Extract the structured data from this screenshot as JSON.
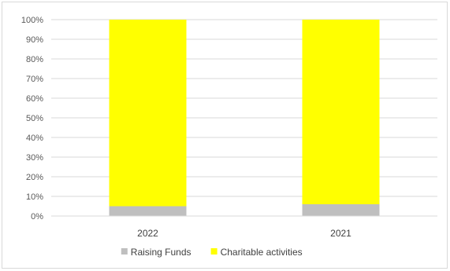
{
  "chart_data": {
    "type": "bar",
    "stacked": true,
    "normalized": true,
    "categories": [
      "2022",
      "2021"
    ],
    "series": [
      {
        "name": "Raising Funds",
        "values": [
          5,
          6
        ],
        "color": "#bfbfbf"
      },
      {
        "name": "Charitable activities",
        "values": [
          95,
          94
        ],
        "color": "#ffff00"
      }
    ],
    "ylim": [
      0,
      100
    ],
    "yticks": [
      "0%",
      "10%",
      "20%",
      "30%",
      "40%",
      "50%",
      "60%",
      "70%",
      "80%",
      "90%",
      "100%"
    ],
    "grid": true,
    "legend": "bottom",
    "title": "",
    "xlabel": "",
    "ylabel": ""
  }
}
